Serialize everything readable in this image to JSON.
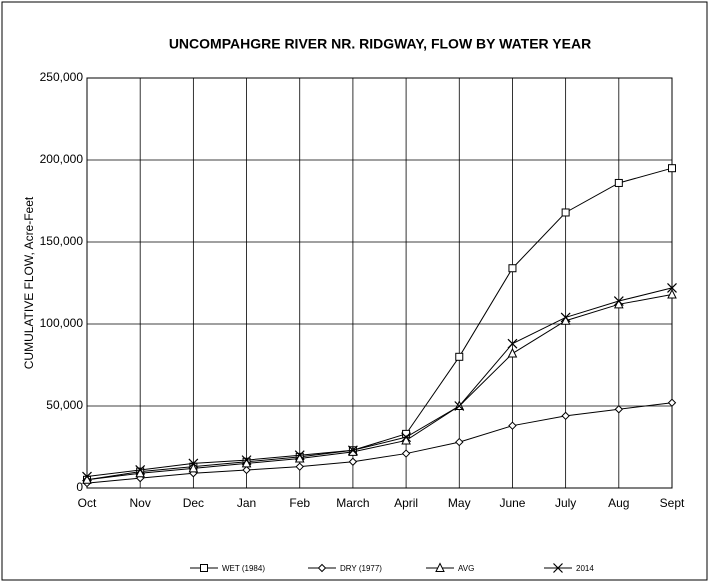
{
  "chart_data": {
    "type": "line",
    "title": "UNCOMPAHGRE RIVER NR. RIDGWAY, FLOW BY WATER YEAR",
    "y_label": "CUMULATIVE FLOW, Acre-Feet",
    "categories": [
      "Oct",
      "Nov",
      "Dec",
      "Jan",
      "Feb",
      "March",
      "April",
      "May",
      "June",
      "July",
      "Aug",
      "Sept"
    ],
    "series": [
      {
        "name": "WET (1984)",
        "color": "#000000",
        "marker": "square",
        "values": [
          5000,
          10000,
          13000,
          16000,
          19000,
          23000,
          33000,
          80000,
          134000,
          168000,
          186000,
          195000
        ]
      },
      {
        "name": "DRY (1977)",
        "color": "#000000",
        "marker": "diamond",
        "values": [
          3000,
          6000,
          9000,
          11000,
          13000,
          16000,
          21000,
          28000,
          38000,
          44000,
          48000,
          52000
        ]
      },
      {
        "name": "AVG",
        "color": "#000000",
        "marker": "triangle",
        "values": [
          5000,
          9000,
          12000,
          15000,
          18000,
          22000,
          29000,
          50000,
          82000,
          102000,
          112000,
          118000
        ]
      },
      {
        "name": "2014",
        "color": "#000000",
        "marker": "star",
        "values": [
          7000,
          11000,
          15000,
          17000,
          20000,
          23000,
          31000,
          50000,
          88000,
          104000,
          114000,
          122000
        ]
      }
    ],
    "ylim": [
      0,
      250000
    ],
    "yticks": [
      0,
      {
        "value": 50000,
        "label": "50,000"
      },
      {
        "value": 100000,
        "label": "100,000"
      },
      {
        "value": 150000,
        "label": "150,000"
      },
      {
        "value": 200000,
        "label": "200,000"
      },
      {
        "value": 250000,
        "label": "250,000"
      }
    ],
    "grid": true,
    "legend": "bottom"
  }
}
